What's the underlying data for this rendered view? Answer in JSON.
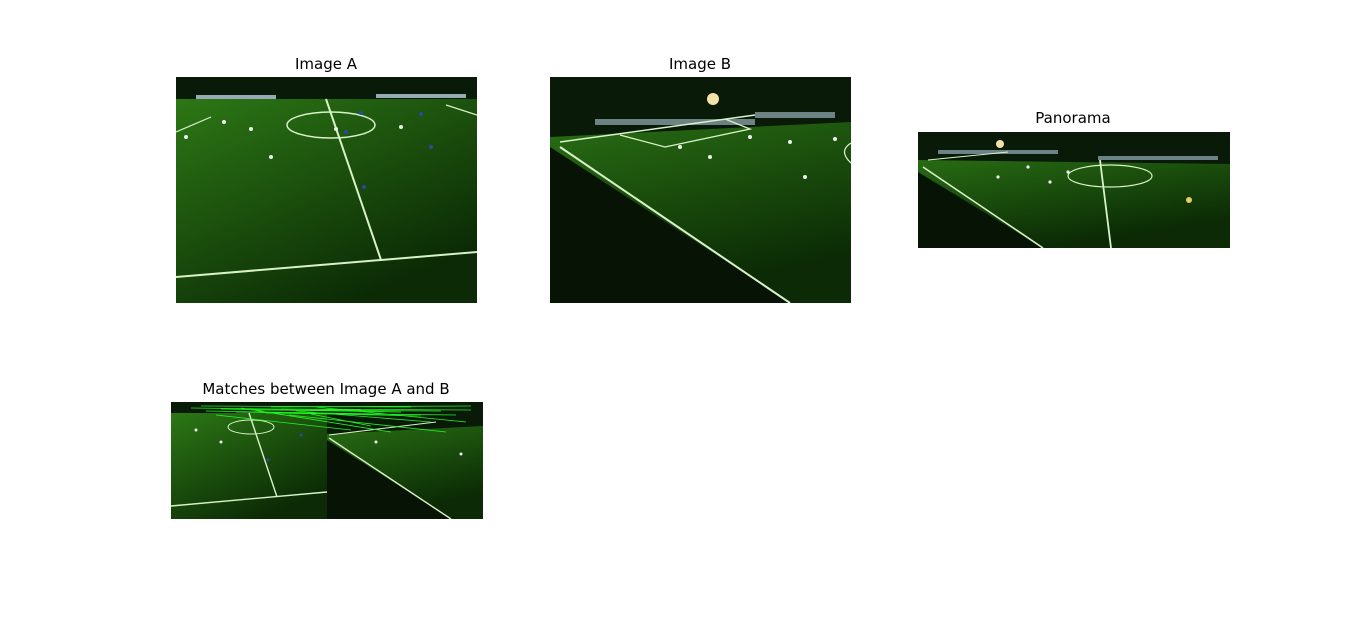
{
  "figure": {
    "panels": [
      {
        "id": "image_a",
        "title": "Image A"
      },
      {
        "id": "image_b",
        "title": "Image B"
      },
      {
        "id": "panorama",
        "title": "Panorama"
      },
      {
        "id": "matches",
        "title": "Matches between Image A and B"
      }
    ]
  },
  "colors": {
    "pitch_light": "#2f7d17",
    "pitch_dark": "#0b2a05",
    "stands": "#0a1a08",
    "line": "#d8f2c8",
    "match_line": "#22ff22"
  }
}
